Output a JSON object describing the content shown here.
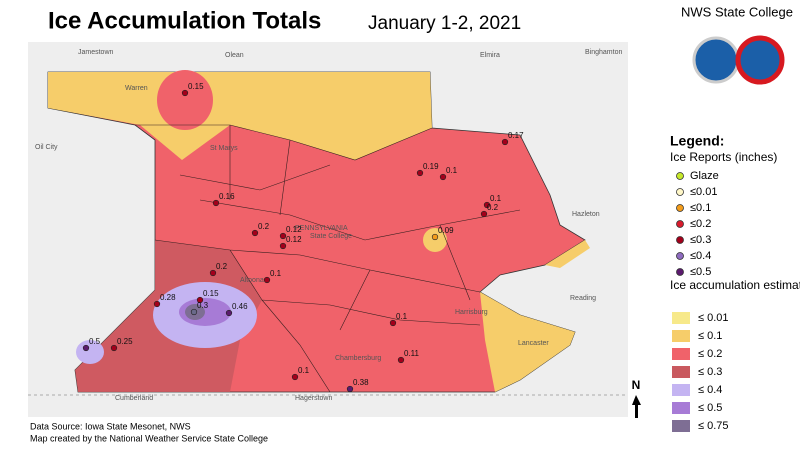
{
  "header": {
    "title": "Ice Accumulation Totals",
    "subtitle": "January 1-2, 2021",
    "office": "NWS State College"
  },
  "map": {
    "places": [
      "Jamestown",
      "Olean",
      "Elmira",
      "Binghamton",
      "Warren",
      "Oil City",
      "St Marys",
      "Altoona",
      "State College",
      "Harrisburg",
      "Lancaster",
      "Chambersburg",
      "Hagerstown",
      "Cumberland",
      "Hazleton",
      "Reading",
      "PENNSYLVANIA"
    ],
    "reports": [
      {
        "value": 0.15,
        "color": "#a3001b"
      },
      {
        "value": 0.17,
        "color": "#a3001b"
      },
      {
        "value": 0.19,
        "color": "#a3001b"
      },
      {
        "value": 0.1,
        "color": "#a3001b"
      },
      {
        "value": 0.16,
        "color": "#a3001b"
      },
      {
        "value": 0.1,
        "color": "#a3001b"
      },
      {
        "value": 0.2,
        "color": "#a3001b"
      },
      {
        "value": 0.2,
        "color": "#a3001b"
      },
      {
        "value": 0.12,
        "color": "#a3001b"
      },
      {
        "value": 0.12,
        "color": "#a3001b"
      },
      {
        "value": 0.09,
        "color": "#f39c1b"
      },
      {
        "value": 0.2,
        "color": "#a3001b"
      },
      {
        "value": 0.1,
        "color": "#a3001b"
      },
      {
        "value": 0.28,
        "color": "#a3001b"
      },
      {
        "value": 0.15,
        "color": "#a3001b"
      },
      {
        "value": 0.3,
        "color": "#6a6a8a"
      },
      {
        "value": 0.46,
        "color": "#5b1a6e"
      },
      {
        "value": 0.5,
        "color": "#5b1a6e"
      },
      {
        "value": 0.25,
        "color": "#a3001b"
      },
      {
        "value": 0.1,
        "color": "#a3001b"
      },
      {
        "value": 0.11,
        "color": "#a3001b"
      },
      {
        "value": 0.1,
        "color": "#a3001b"
      },
      {
        "value": 0.38,
        "color": "#5b1a6e"
      }
    ]
  },
  "legend": {
    "title": "Legend:",
    "reports_title": "Ice Reports (inches)",
    "report_items": [
      {
        "label": "Glaze",
        "color": "#c6e82a"
      },
      {
        "label": "≤0.01",
        "color": "#fff7c8"
      },
      {
        "label": "≤0.1",
        "color": "#f39c1b"
      },
      {
        "label": "≤0.2",
        "color": "#d81b2c"
      },
      {
        "label": "≤0.3",
        "color": "#a3001b"
      },
      {
        "label": "≤0.4",
        "color": "#8e6bbf"
      },
      {
        "label": "≤0.5",
        "color": "#5b1a6e"
      }
    ],
    "estimate_title": "Ice accumulation estimate",
    "estimate_items": [
      {
        "label": "≤ 0.01",
        "color": "#f7e98a"
      },
      {
        "label": "≤ 0.1",
        "color": "#f6cd6a"
      },
      {
        "label": "≤ 0.2",
        "color": "#f0626a"
      },
      {
        "label": "≤ 0.3",
        "color": "#c9595f"
      },
      {
        "label": "≤ 0.4",
        "color": "#c4b4f2"
      },
      {
        "label": "≤ 0.5",
        "color": "#a77bd6"
      },
      {
        "label": "≤ 0.75",
        "color": "#7e6e94"
      }
    ]
  },
  "north": "N",
  "footer": {
    "source": "Data Source: Iowa State Mesonet, NWS",
    "credit": "Map created by the National Weather Service State College"
  }
}
